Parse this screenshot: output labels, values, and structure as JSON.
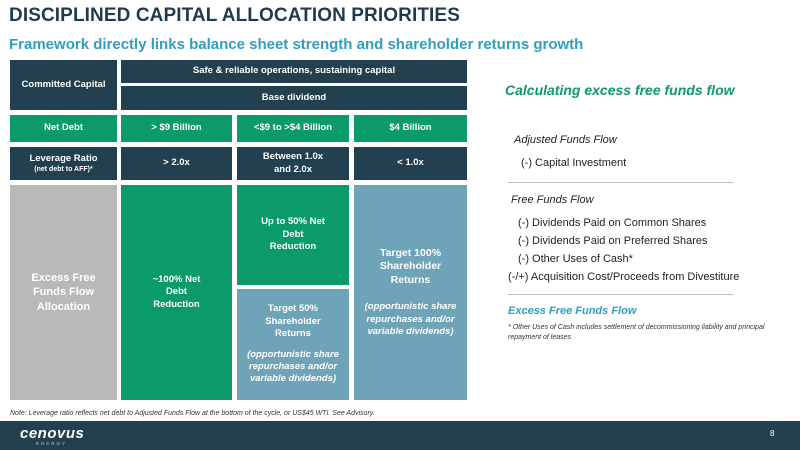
{
  "header": {
    "title": "DISCIPLINED CAPITAL ALLOCATION PRIORITIES",
    "subtitle": "Framework directly links balance sheet strength and shareholder returns growth"
  },
  "grid": {
    "committed_capital_label": "Committed Capital",
    "safe_ops": "Safe & reliable operations, sustaining capital",
    "base_dividend": "Base dividend",
    "net_debt_label": "Net Debt",
    "net_debt_tiers": [
      "> $9 Billion",
      "<$9 to >$4 Billion",
      "$4 Billion"
    ],
    "leverage_label": "Leverage Ratio",
    "leverage_sub": "(net debt to AFF)*",
    "leverage_tiers": [
      "> 2.0x",
      "Between 1.0x and 2.0x",
      "< 1.0x"
    ],
    "excess_label": "Excess Free Funds Flow Allocation",
    "alloc_col1": "~100% Net Debt Reduction",
    "alloc_col2_top": "Up to 50% Net Debt Reduction",
    "alloc_col2_bottom": "Target 50% Shareholder Returns",
    "alloc_col2_bottom_note": "(opportunistic share repurchases and/or variable dividends)",
    "alloc_col3": "Target 100% Shareholder Returns",
    "alloc_col3_note": "(opportunistic share repurchases and/or variable dividends)"
  },
  "calc": {
    "title": "Calculating excess free funds flow",
    "adjusted_funds_flow": "Adjusted Funds Flow",
    "capital_investment": "(-)   Capital Investment",
    "free_funds_flow": "Free Funds Flow",
    "dividends_common": "(-)   Dividends Paid on Common Shares",
    "dividends_preferred": "(-)   Dividends Paid on Preferred Shares",
    "other_uses": "(-)   Other Uses of Cash*",
    "acquisition": "(-/+) Acquisition Cost/Proceeds from Divestiture",
    "excess_free_funds_flow": "Excess Free Funds Flow",
    "footnote": "* Other Uses of Cash includes settlement of decommissioning liability and principal repayment of leases"
  },
  "note": "Note: Leverage ratio reflects net debt to Adjusted Funds Flow at the bottom of the cycle, or US$45 WTI. See Advisory.",
  "footer": {
    "logo": "cenovus",
    "logo_sub": "ENERGY",
    "page_number": "8"
  }
}
